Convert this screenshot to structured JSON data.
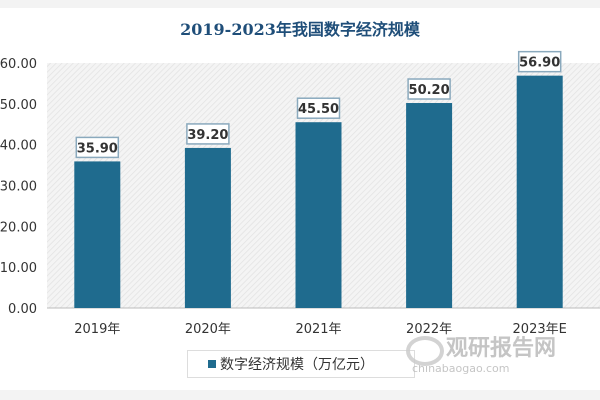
{
  "chart_data": {
    "type": "bar",
    "title": "2019-2023年我国数字经济规模",
    "categories": [
      "2019年",
      "2020年",
      "2021年",
      "2022年",
      "2023年E"
    ],
    "series": [
      {
        "name": "数字经济规模（万亿元）",
        "values": [
          35.9,
          39.2,
          45.5,
          50.2,
          56.9
        ],
        "color": "#1f6b8e"
      }
    ],
    "data_labels": [
      "35.90",
      "39.20",
      "45.50",
      "50.20",
      "56.90"
    ],
    "yticks": [
      "0.00",
      "10.00",
      "20.00",
      "30.00",
      "40.00",
      "50.00",
      "60.00"
    ],
    "ylim": [
      0,
      60
    ],
    "legend": "bottom",
    "grid": false
  },
  "watermark": {
    "name": "观研报告网",
    "url": "chinabaogao.com"
  }
}
